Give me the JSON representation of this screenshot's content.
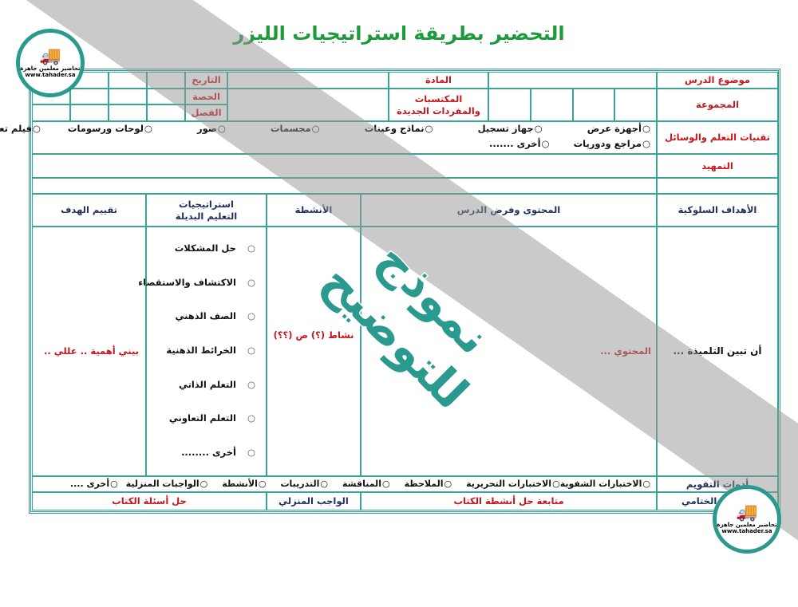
{
  "title": "التحضير بطريقة استراتيجيات الليزر",
  "header": {
    "lesson_topic": "موضوع الدرس",
    "group": "المجموعة",
    "subject": "المادة",
    "new_vocab": "المكتسبات والمفردات الجديدة",
    "date": "التاريخ",
    "period": "الحصة",
    "class": "الفصل"
  },
  "tech": {
    "label": "تقنيات التعلم والوسائل",
    "line1": [
      "أجهزة عرض",
      "جهاز تسجيل",
      "نماذج وعينات",
      "مجسمات",
      "صور",
      "لوحات ورسومات",
      "فيلم تعليمي"
    ],
    "line2": [
      "مراجع ودوريات",
      "أخرى ......."
    ]
  },
  "intro": "التمهيد",
  "columns": {
    "objectives": "الأهداف السلوكية",
    "content": "المحتوى وفرض الدرس",
    "activities": "الأنشطة",
    "strategies": "استراتيجيات التعليم البديلة",
    "evaluation": "تقييم الهدف"
  },
  "body": {
    "objective": "أن تبين التلميذة ...",
    "content": "المحتوي ...",
    "activity": "نشاط (؟) ص (؟؟)",
    "evaluation": "بيني أهمية .. عللي ..",
    "strategies": [
      "حل المشكلات",
      "الاكتشاف والاستقصاء",
      "الصف الذهني",
      "الخرائط الذهنية",
      "التعلم الذاتي",
      "التعلم التعاوني",
      "أخرى ........"
    ]
  },
  "assessment": {
    "label": "أدوات التقويم",
    "options": [
      "الاختبارات الشفوية",
      "الاختبارات التحريرية",
      "الملاحظة",
      "المناقشة",
      "التدريبات",
      "الأنشطة",
      "الواجبات المنزلية",
      "أخرى ...."
    ]
  },
  "final": {
    "label": "التقويم الختامي",
    "book_activities": "متابعة حل أنشطة الكتاب",
    "homework": "الواجب المنزلي",
    "book_questions": "حل أسئلة الكتاب"
  },
  "watermark": "نموذج للتوضيح",
  "logo": {
    "text": "تحاضير معلمين جاهزة",
    "url": "www.tahader.sa"
  },
  "colors": {
    "frame": "#2a9a8e",
    "title": "#1d9a3c",
    "label_red": "#c4161c",
    "label_navy": "#1f2f5e"
  }
}
